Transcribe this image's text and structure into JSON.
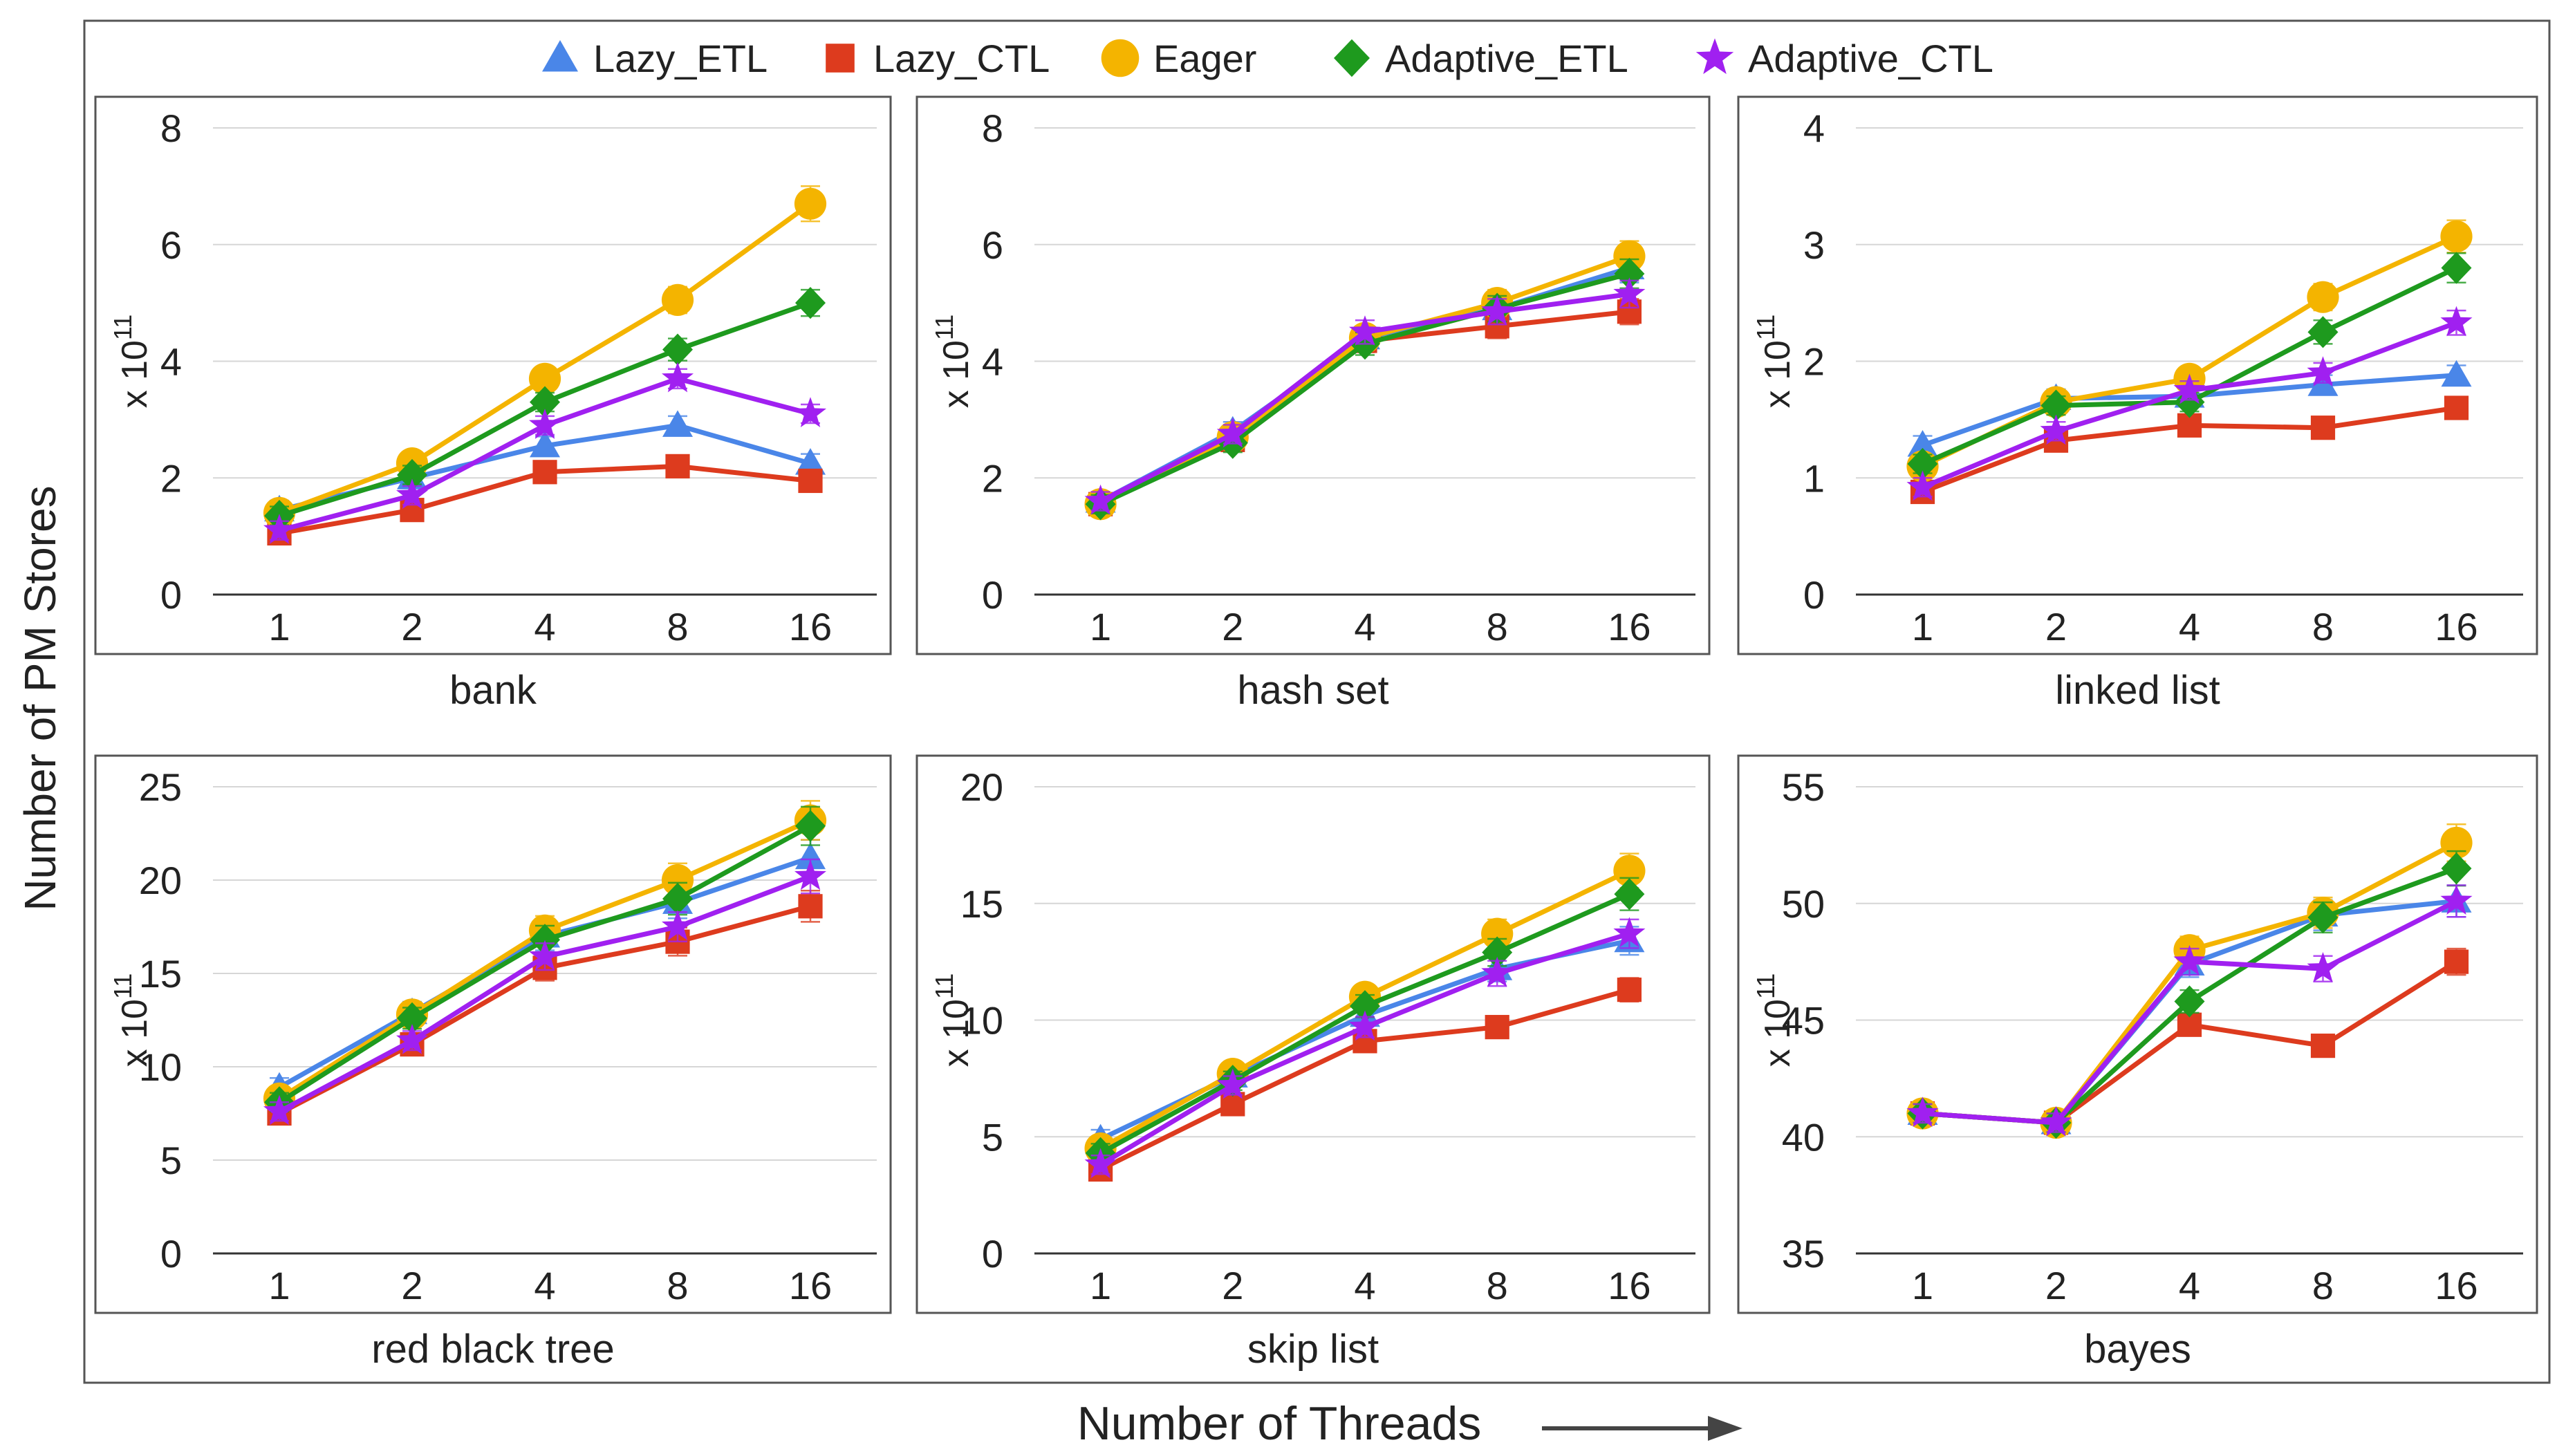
{
  "figure": {
    "y_axis_label": "Number of PM Stores",
    "x_axis_label": "Number of Threads",
    "scale_base": "x 10",
    "scale_exponent": "11"
  },
  "legend": [
    {
      "name": "Lazy_ETL",
      "marker": "triangle",
      "color": "#4a86e8"
    },
    {
      "name": "Lazy_CTL",
      "marker": "square",
      "color": "#dd3b1e"
    },
    {
      "name": "Eager",
      "marker": "circle",
      "color": "#f4b400"
    },
    {
      "name": "Adaptive_ETL",
      "marker": "diamond",
      "color": "#1e9a1e"
    },
    {
      "name": "Adaptive_CTL",
      "marker": "star",
      "color": "#a020f0"
    }
  ],
  "chart_data": [
    {
      "type": "line",
      "title": "bank",
      "xlabel": "",
      "ylabel": "x 10^11",
      "categories": [
        "1",
        "2",
        "4",
        "8",
        "16"
      ],
      "ylim": [
        0,
        8
      ],
      "yticks": [
        "0",
        "2",
        "4",
        "6",
        "8"
      ],
      "series": [
        {
          "name": "Lazy_ETL",
          "values": [
            1.45,
            2.0,
            2.55,
            2.9,
            2.25
          ]
        },
        {
          "name": "Lazy_CTL",
          "values": [
            1.05,
            1.45,
            2.1,
            2.2,
            1.95
          ]
        },
        {
          "name": "Eager",
          "values": [
            1.4,
            2.25,
            3.7,
            5.05,
            6.7
          ]
        },
        {
          "name": "Adaptive_ETL",
          "values": [
            1.35,
            2.05,
            3.3,
            4.2,
            5.0
          ]
        },
        {
          "name": "Adaptive_CTL",
          "values": [
            1.1,
            1.7,
            2.9,
            3.7,
            3.1
          ]
        }
      ]
    },
    {
      "type": "line",
      "title": "hash set",
      "xlabel": "",
      "ylabel": "x 10^11",
      "categories": [
        "1",
        "2",
        "4",
        "8",
        "16"
      ],
      "ylim": [
        0,
        8
      ],
      "yticks": [
        "0",
        "2",
        "4",
        "6",
        "8"
      ],
      "series": [
        {
          "name": "Lazy_ETL",
          "values": [
            1.6,
            2.8,
            4.4,
            4.9,
            5.6
          ]
        },
        {
          "name": "Lazy_CTL",
          "values": [
            1.55,
            2.65,
            4.35,
            4.6,
            4.85
          ]
        },
        {
          "name": "Eager",
          "values": [
            1.55,
            2.7,
            4.4,
            5.0,
            5.8
          ]
        },
        {
          "name": "Adaptive_ETL",
          "values": [
            1.55,
            2.6,
            4.3,
            4.9,
            5.5
          ]
        },
        {
          "name": "Adaptive_CTL",
          "values": [
            1.6,
            2.75,
            4.5,
            4.85,
            5.15
          ]
        }
      ]
    },
    {
      "type": "line",
      "title": "linked list",
      "xlabel": "",
      "ylabel": "x 10^11",
      "categories": [
        "1",
        "2",
        "4",
        "8",
        "16"
      ],
      "ylim": [
        0,
        4
      ],
      "yticks": [
        "0",
        "1",
        "2",
        "3",
        "4"
      ],
      "series": [
        {
          "name": "Lazy_ETL",
          "values": [
            1.28,
            1.68,
            1.7,
            1.8,
            1.88
          ]
        },
        {
          "name": "Lazy_CTL",
          "values": [
            0.88,
            1.32,
            1.45,
            1.43,
            1.6
          ]
        },
        {
          "name": "Eager",
          "values": [
            1.1,
            1.65,
            1.85,
            2.55,
            3.07
          ]
        },
        {
          "name": "Adaptive_ETL",
          "values": [
            1.12,
            1.62,
            1.65,
            2.25,
            2.8
          ]
        },
        {
          "name": "Adaptive_CTL",
          "values": [
            0.92,
            1.4,
            1.75,
            1.9,
            2.33
          ]
        }
      ]
    },
    {
      "type": "line",
      "title": "red black tree",
      "xlabel": "",
      "ylabel": "x 10^11",
      "categories": [
        "1",
        "2",
        "4",
        "8",
        "16"
      ],
      "ylim": [
        0,
        25
      ],
      "yticks": [
        "0",
        "5",
        "10",
        "15",
        "20",
        "25"
      ],
      "series": [
        {
          "name": "Lazy_ETL",
          "values": [
            8.9,
            12.9,
            17.0,
            18.8,
            21.2
          ]
        },
        {
          "name": "Lazy_CTL",
          "values": [
            7.5,
            11.2,
            15.3,
            16.7,
            18.6
          ]
        },
        {
          "name": "Eager",
          "values": [
            8.3,
            12.8,
            17.3,
            20.0,
            23.2
          ]
        },
        {
          "name": "Adaptive_ETL",
          "values": [
            8.1,
            12.6,
            16.8,
            19.0,
            22.9
          ]
        },
        {
          "name": "Adaptive_CTL",
          "values": [
            7.6,
            11.4,
            15.9,
            17.5,
            20.2
          ]
        }
      ]
    },
    {
      "type": "line",
      "title": "skip list",
      "xlabel": "",
      "ylabel": "x 10^11",
      "categories": [
        "1",
        "2",
        "4",
        "8",
        "16"
      ],
      "ylim": [
        0,
        20
      ],
      "yticks": [
        "0",
        "5",
        "10",
        "15",
        "20"
      ],
      "series": [
        {
          "name": "Lazy_ETL",
          "values": [
            4.9,
            7.6,
            10.2,
            12.2,
            13.4
          ]
        },
        {
          "name": "Lazy_CTL",
          "values": [
            3.6,
            6.4,
            9.1,
            9.7,
            11.3
          ]
        },
        {
          "name": "Eager",
          "values": [
            4.5,
            7.7,
            11.0,
            13.7,
            16.4
          ]
        },
        {
          "name": "Adaptive_ETL",
          "values": [
            4.3,
            7.4,
            10.6,
            12.9,
            15.4
          ]
        },
        {
          "name": "Adaptive_CTL",
          "values": [
            3.8,
            7.2,
            9.7,
            12.0,
            13.7
          ]
        }
      ]
    },
    {
      "type": "line",
      "title": "bayes",
      "xlabel": "",
      "ylabel": "x 10^11",
      "categories": [
        "1",
        "2",
        "4",
        "8",
        "16"
      ],
      "ylim": [
        35,
        55
      ],
      "yticks": [
        "35",
        "40",
        "45",
        "50",
        "55"
      ],
      "series": [
        {
          "name": "Lazy_ETL",
          "values": [
            41.0,
            40.6,
            47.4,
            49.5,
            50.1
          ]
        },
        {
          "name": "Lazy_CTL",
          "values": [
            41.0,
            40.6,
            44.8,
            43.9,
            47.5
          ]
        },
        {
          "name": "Eager",
          "values": [
            41.0,
            40.6,
            48.0,
            49.6,
            52.6
          ]
        },
        {
          "name": "Adaptive_ETL",
          "values": [
            41.0,
            40.6,
            45.8,
            49.4,
            51.5
          ]
        },
        {
          "name": "Adaptive_CTL",
          "values": [
            41.0,
            40.6,
            47.5,
            47.2,
            50.1
          ]
        }
      ]
    }
  ]
}
